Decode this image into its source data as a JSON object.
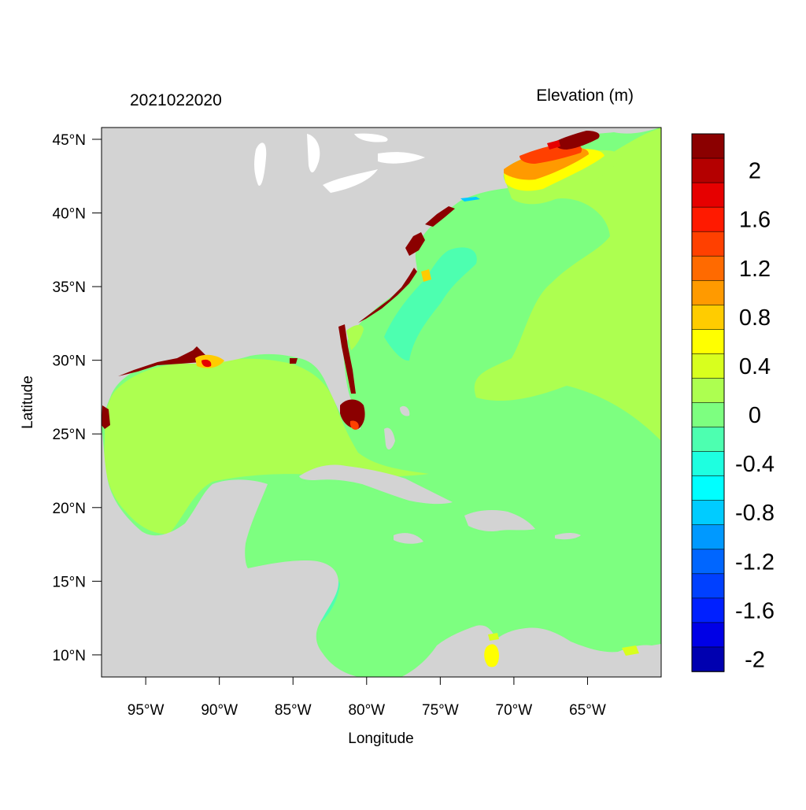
{
  "header": {
    "timestamp": "2021022020",
    "variable_title": "Elevation (m)"
  },
  "axes": {
    "xlabel": "Longitude",
    "ylabel": "Latitude",
    "x_ticks": [
      {
        "value": -95,
        "label": "95°W"
      },
      {
        "value": -90,
        "label": "90°W"
      },
      {
        "value": -85,
        "label": "85°W"
      },
      {
        "value": -80,
        "label": "80°W"
      },
      {
        "value": -75,
        "label": "75°W"
      },
      {
        "value": -70,
        "label": "70°W"
      },
      {
        "value": -65,
        "label": "65°W"
      }
    ],
    "y_ticks": [
      {
        "value": 45,
        "label": "45°N"
      },
      {
        "value": 40,
        "label": "40°N"
      },
      {
        "value": 35,
        "label": "35°N"
      },
      {
        "value": 30,
        "label": "30°N"
      },
      {
        "value": 25,
        "label": "25°N"
      },
      {
        "value": 20,
        "label": "20°N"
      },
      {
        "value": 15,
        "label": "15°N"
      },
      {
        "value": 10,
        "label": "10°N"
      }
    ],
    "lon_range": [
      -98,
      -60
    ],
    "lat_range": [
      8.5,
      45.8
    ]
  },
  "colorbar": {
    "levels": [
      {
        "color": "#8b0000",
        "label": ""
      },
      {
        "color": "#b40000",
        "label": "2"
      },
      {
        "color": "#e60000",
        "label": ""
      },
      {
        "color": "#ff1a00",
        "label": "1.6"
      },
      {
        "color": "#ff4000",
        "label": ""
      },
      {
        "color": "#ff6a00",
        "label": "1.2"
      },
      {
        "color": "#ff9a00",
        "label": ""
      },
      {
        "color": "#ffcc00",
        "label": "0.8"
      },
      {
        "color": "#ffff00",
        "label": ""
      },
      {
        "color": "#d8ff1e",
        "label": "0.4"
      },
      {
        "color": "#adff50",
        "label": ""
      },
      {
        "color": "#7dff80",
        "label": "0"
      },
      {
        "color": "#4dffb0",
        "label": ""
      },
      {
        "color": "#1effe0",
        "label": "-0.4"
      },
      {
        "color": "#00ffff",
        "label": ""
      },
      {
        "color": "#00ccff",
        "label": "-0.8"
      },
      {
        "color": "#0099ff",
        "label": ""
      },
      {
        "color": "#0066ff",
        "label": "-1.2"
      },
      {
        "color": "#0040ff",
        "label": ""
      },
      {
        "color": "#0020ff",
        "label": "-1.6"
      },
      {
        "color": "#0000e6",
        "label": ""
      },
      {
        "color": "#0000b0",
        "label": "-2"
      }
    ]
  },
  "colors": {
    "land": "#d3d3d3",
    "ocean_base": "#7dff80",
    "gulf": "#adff50"
  }
}
